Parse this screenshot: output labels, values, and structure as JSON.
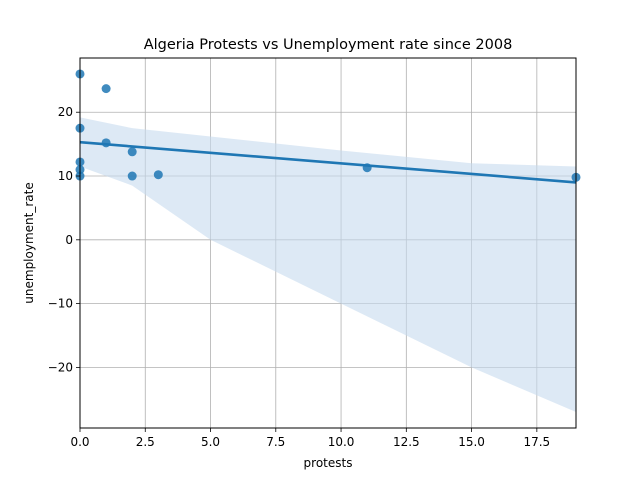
{
  "chart_data": {
    "type": "scatter",
    "title": "Algeria Protests vs Unemployment rate since 2008",
    "xlabel": "protests",
    "ylabel": "unemployment_rate",
    "xlim": [
      0,
      19
    ],
    "ylim": [
      -29.5,
      28.5
    ],
    "xticks": [
      0,
      2.5,
      5,
      7.5,
      10,
      12.5,
      15,
      17.5
    ],
    "xtick_labels": [
      "0.0",
      "2.5",
      "5.0",
      "7.5",
      "10.0",
      "12.5",
      "15.0",
      "17.5"
    ],
    "yticks": [
      -20,
      -10,
      0,
      10,
      20
    ],
    "ytick_labels": [
      "−20",
      "−10",
      "0",
      "10",
      "20"
    ],
    "grid": true,
    "series": [
      {
        "points": [
          {
            "x": 0,
            "y": 26.0
          },
          {
            "x": 0,
            "y": 17.5
          },
          {
            "x": 0,
            "y": 12.2
          },
          {
            "x": 0,
            "y": 11.0
          },
          {
            "x": 0,
            "y": 10.0
          },
          {
            "x": 1,
            "y": 23.7
          },
          {
            "x": 1,
            "y": 15.2
          },
          {
            "x": 2,
            "y": 13.8
          },
          {
            "x": 2,
            "y": 10.0
          },
          {
            "x": 3,
            "y": 10.2
          },
          {
            "x": 11,
            "y": 11.3
          },
          {
            "x": 19,
            "y": 9.8
          }
        ]
      }
    ],
    "regression_line": {
      "x": [
        0,
        19
      ],
      "y": [
        15.3,
        9.0
      ]
    },
    "confidence_band": {
      "x": [
        0,
        2,
        5,
        10,
        15,
        19
      ],
      "upper": [
        19.2,
        17.5,
        16.2,
        14.0,
        12.0,
        11.5
      ],
      "lower": [
        11.5,
        8.5,
        0.0,
        -10.0,
        -20.0,
        -27.0
      ]
    },
    "colors": {
      "points": "#1f77b4",
      "line": "#1f77b4",
      "band": "#c6dbef",
      "grid": "#b0b0b0"
    }
  }
}
